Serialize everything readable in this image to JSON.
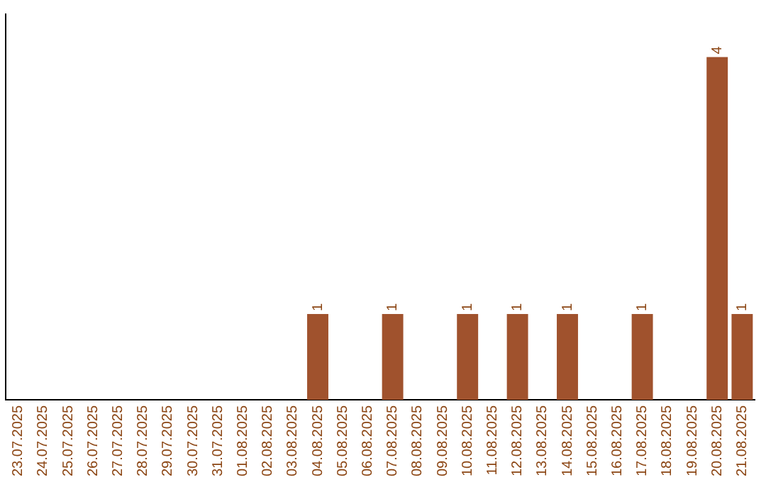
{
  "chart_data": {
    "type": "bar",
    "categories": [
      "23.07.2025",
      "24.07.2025",
      "25.07.2025",
      "26.07.2025",
      "27.07.2025",
      "28.07.2025",
      "29.07.2025",
      "30.07.2025",
      "31.07.2025",
      "01.08.2025",
      "02.08.2025",
      "03.08.2025",
      "04.08.2025",
      "05.08.2025",
      "06.08.2025",
      "07.08.2025",
      "08.08.2025",
      "09.08.2025",
      "10.08.2025",
      "11.08.2025",
      "12.08.2025",
      "13.08.2025",
      "14.08.2025",
      "15.08.2025",
      "16.08.2025",
      "17.08.2025",
      "18.08.2025",
      "19.08.2025",
      "20.08.2025",
      "21.08.2025"
    ],
    "values": [
      null,
      null,
      null,
      null,
      null,
      null,
      null,
      null,
      null,
      null,
      null,
      null,
      1,
      null,
      null,
      1,
      null,
      null,
      1,
      null,
      1,
      null,
      1,
      null,
      null,
      1,
      null,
      null,
      4,
      1
    ],
    "data_labels": true,
    "color": "#a0522d",
    "grid": false,
    "legend": false,
    "tick_labels": "x"
  }
}
